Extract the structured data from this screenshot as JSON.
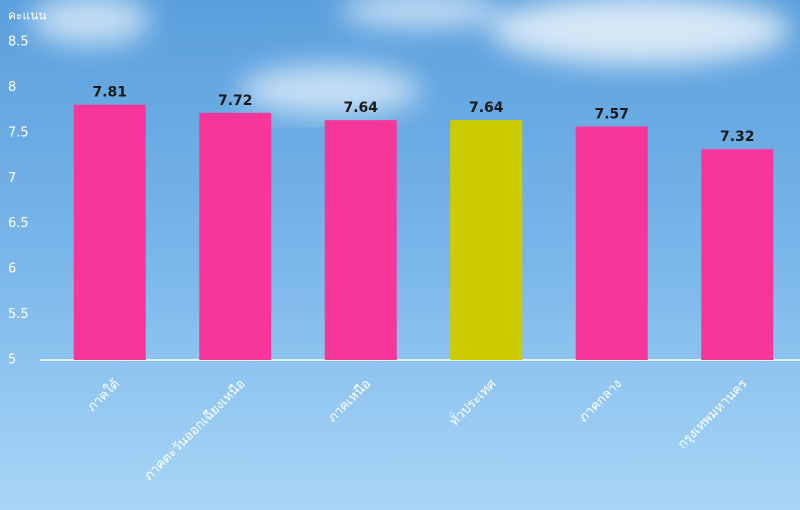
{
  "chart_data": {
    "type": "bar",
    "y_label": "คะแนน",
    "categories": [
      "ภาคใต้",
      "ภาคตะวันออกเฉียงเหนือ",
      "ภาคเหนือ",
      "ทั่วประเทศ",
      "ภาคกลาง",
      "กรุงเทพมหานคร"
    ],
    "values": [
      7.81,
      7.72,
      7.64,
      7.64,
      7.57,
      7.32
    ],
    "colors": [
      "#f7369a",
      "#f7369a",
      "#f7369a",
      "#cccc00",
      "#f7369a",
      "#f7369a"
    ],
    "ylim": [
      5,
      8.5
    ],
    "yticks": [
      5,
      5.5,
      6,
      6.5,
      7,
      7.5,
      8,
      8.5
    ],
    "grid": false
  }
}
